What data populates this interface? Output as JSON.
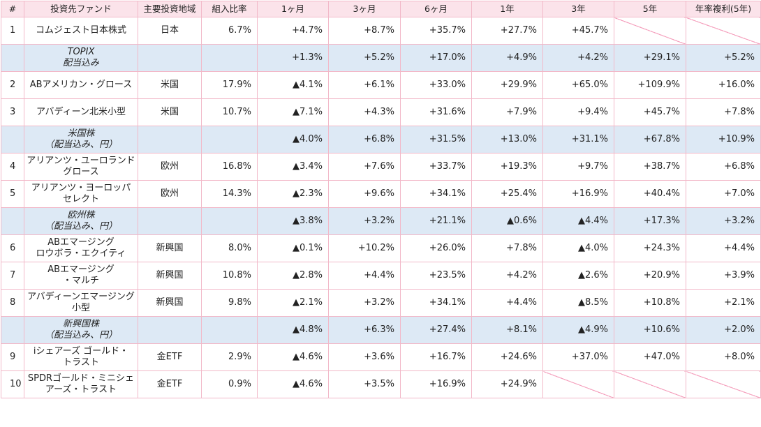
{
  "headers": [
    "#",
    "投資先ファンド",
    "主要投資地域",
    "組入比率",
    "1ヶ月",
    "3ヶ月",
    "6ヶ月",
    "1年",
    "3年",
    "5年",
    "年率複利(5年)"
  ],
  "rows": [
    {
      "type": "fund",
      "no": "1",
      "name": [
        "コムジェスト日本株式"
      ],
      "region": "日本",
      "weight": "6.7%",
      "m1": "+4.7%",
      "m3": "+8.7%",
      "m6": "+35.7%",
      "y1": "+27.7%",
      "y3": "+45.7%",
      "y5": "",
      "cagr": ""
    },
    {
      "type": "bench",
      "no": "",
      "name": [
        "TOPIX",
        "配当込み"
      ],
      "region": "",
      "weight": "",
      "m1": "+1.3%",
      "m3": "+5.2%",
      "m6": "+17.0%",
      "y1": "+4.9%",
      "y3": "+4.2%",
      "y5": "+29.1%",
      "cagr": "+5.2%"
    },
    {
      "type": "fund",
      "no": "2",
      "name": [
        "ABアメリカン・グロース"
      ],
      "region": "米国",
      "weight": "17.9%",
      "m1": "▲4.1%",
      "m3": "+6.1%",
      "m6": "+33.0%",
      "y1": "+29.9%",
      "y3": "+65.0%",
      "y5": "+109.9%",
      "cagr": "+16.0%"
    },
    {
      "type": "fund",
      "no": "3",
      "name": [
        "アバディーン北米小型"
      ],
      "region": "米国",
      "weight": "10.7%",
      "m1": "▲7.1%",
      "m3": "+4.3%",
      "m6": "+31.6%",
      "y1": "+7.9%",
      "y3": "+9.4%",
      "y5": "+45.7%",
      "cagr": "+7.8%"
    },
    {
      "type": "bench",
      "no": "",
      "name": [
        "米国株",
        "（配当込み、円）"
      ],
      "region": "",
      "weight": "",
      "m1": "▲4.0%",
      "m3": "+6.8%",
      "m6": "+31.5%",
      "y1": "+13.0%",
      "y3": "+31.1%",
      "y5": "+67.8%",
      "cagr": "+10.9%"
    },
    {
      "type": "fund",
      "no": "4",
      "name": [
        "アリアンツ・ユーロランド",
        "グロース"
      ],
      "region": "欧州",
      "weight": "16.8%",
      "m1": "▲3.4%",
      "m3": "+7.6%",
      "m6": "+33.7%",
      "y1": "+19.3%",
      "y3": "+9.7%",
      "y5": "+38.7%",
      "cagr": "+6.8%"
    },
    {
      "type": "fund",
      "no": "5",
      "name": [
        "アリアンツ・ヨーロッパ",
        "セレクト"
      ],
      "region": "欧州",
      "weight": "14.3%",
      "m1": "▲2.3%",
      "m3": "+9.6%",
      "m6": "+34.1%",
      "y1": "+25.4%",
      "y3": "+16.9%",
      "y5": "+40.4%",
      "cagr": "+7.0%"
    },
    {
      "type": "bench",
      "no": "",
      "name": [
        "欧州株",
        "（配当込み、円）"
      ],
      "region": "",
      "weight": "",
      "m1": "▲3.8%",
      "m3": "+3.2%",
      "m6": "+21.1%",
      "y1": "▲0.6%",
      "y3": "▲4.4%",
      "y5": "+17.3%",
      "cagr": "+3.2%"
    },
    {
      "type": "fund",
      "no": "6",
      "name": [
        "ABエマージング",
        "ロウボラ・エクイティ"
      ],
      "region": "新興国",
      "weight": "8.0%",
      "m1": "▲0.1%",
      "m3": "+10.2%",
      "m6": "+26.0%",
      "y1": "+7.8%",
      "y3": "▲4.0%",
      "y5": "+24.3%",
      "cagr": "+4.4%"
    },
    {
      "type": "fund",
      "no": "7",
      "name": [
        "ABエマージング",
        "・マルチ"
      ],
      "region": "新興国",
      "weight": "10.8%",
      "m1": "▲2.8%",
      "m3": "+4.4%",
      "m6": "+23.5%",
      "y1": "+4.2%",
      "y3": "▲2.6%",
      "y5": "+20.9%",
      "cagr": "+3.9%"
    },
    {
      "type": "fund",
      "no": "8",
      "name": [
        "アバディーンエマージング",
        "小型"
      ],
      "region": "新興国",
      "weight": "9.8%",
      "m1": "▲2.1%",
      "m3": "+3.2%",
      "m6": "+34.1%",
      "y1": "+4.4%",
      "y3": "▲8.5%",
      "y5": "+10.8%",
      "cagr": "+2.1%"
    },
    {
      "type": "bench",
      "no": "",
      "name": [
        "新興国株",
        "（配当込み、円）"
      ],
      "region": "",
      "weight": "",
      "m1": "▲4.8%",
      "m3": "+6.3%",
      "m6": "+27.4%",
      "y1": "+8.1%",
      "y3": "▲4.9%",
      "y5": "+10.6%",
      "cagr": "+2.0%"
    },
    {
      "type": "fund",
      "no": "9",
      "name": [
        "iシェアーズ ゴールド・",
        "トラスト"
      ],
      "region": "金ETF",
      "weight": "2.9%",
      "m1": "▲4.6%",
      "m3": "+3.6%",
      "m6": "+16.7%",
      "y1": "+24.6%",
      "y3": "+37.0%",
      "y5": "+47.0%",
      "cagr": "+8.0%"
    },
    {
      "type": "fund",
      "no": "10",
      "name": [
        "SPDRゴールド・ミニシェ",
        "アーズ・トラスト"
      ],
      "region": "金ETF",
      "weight": "0.9%",
      "m1": "▲4.6%",
      "m3": "+3.5%",
      "m6": "+16.9%",
      "y1": "+24.9%",
      "y3": "",
      "y5": "",
      "cagr": ""
    }
  ]
}
